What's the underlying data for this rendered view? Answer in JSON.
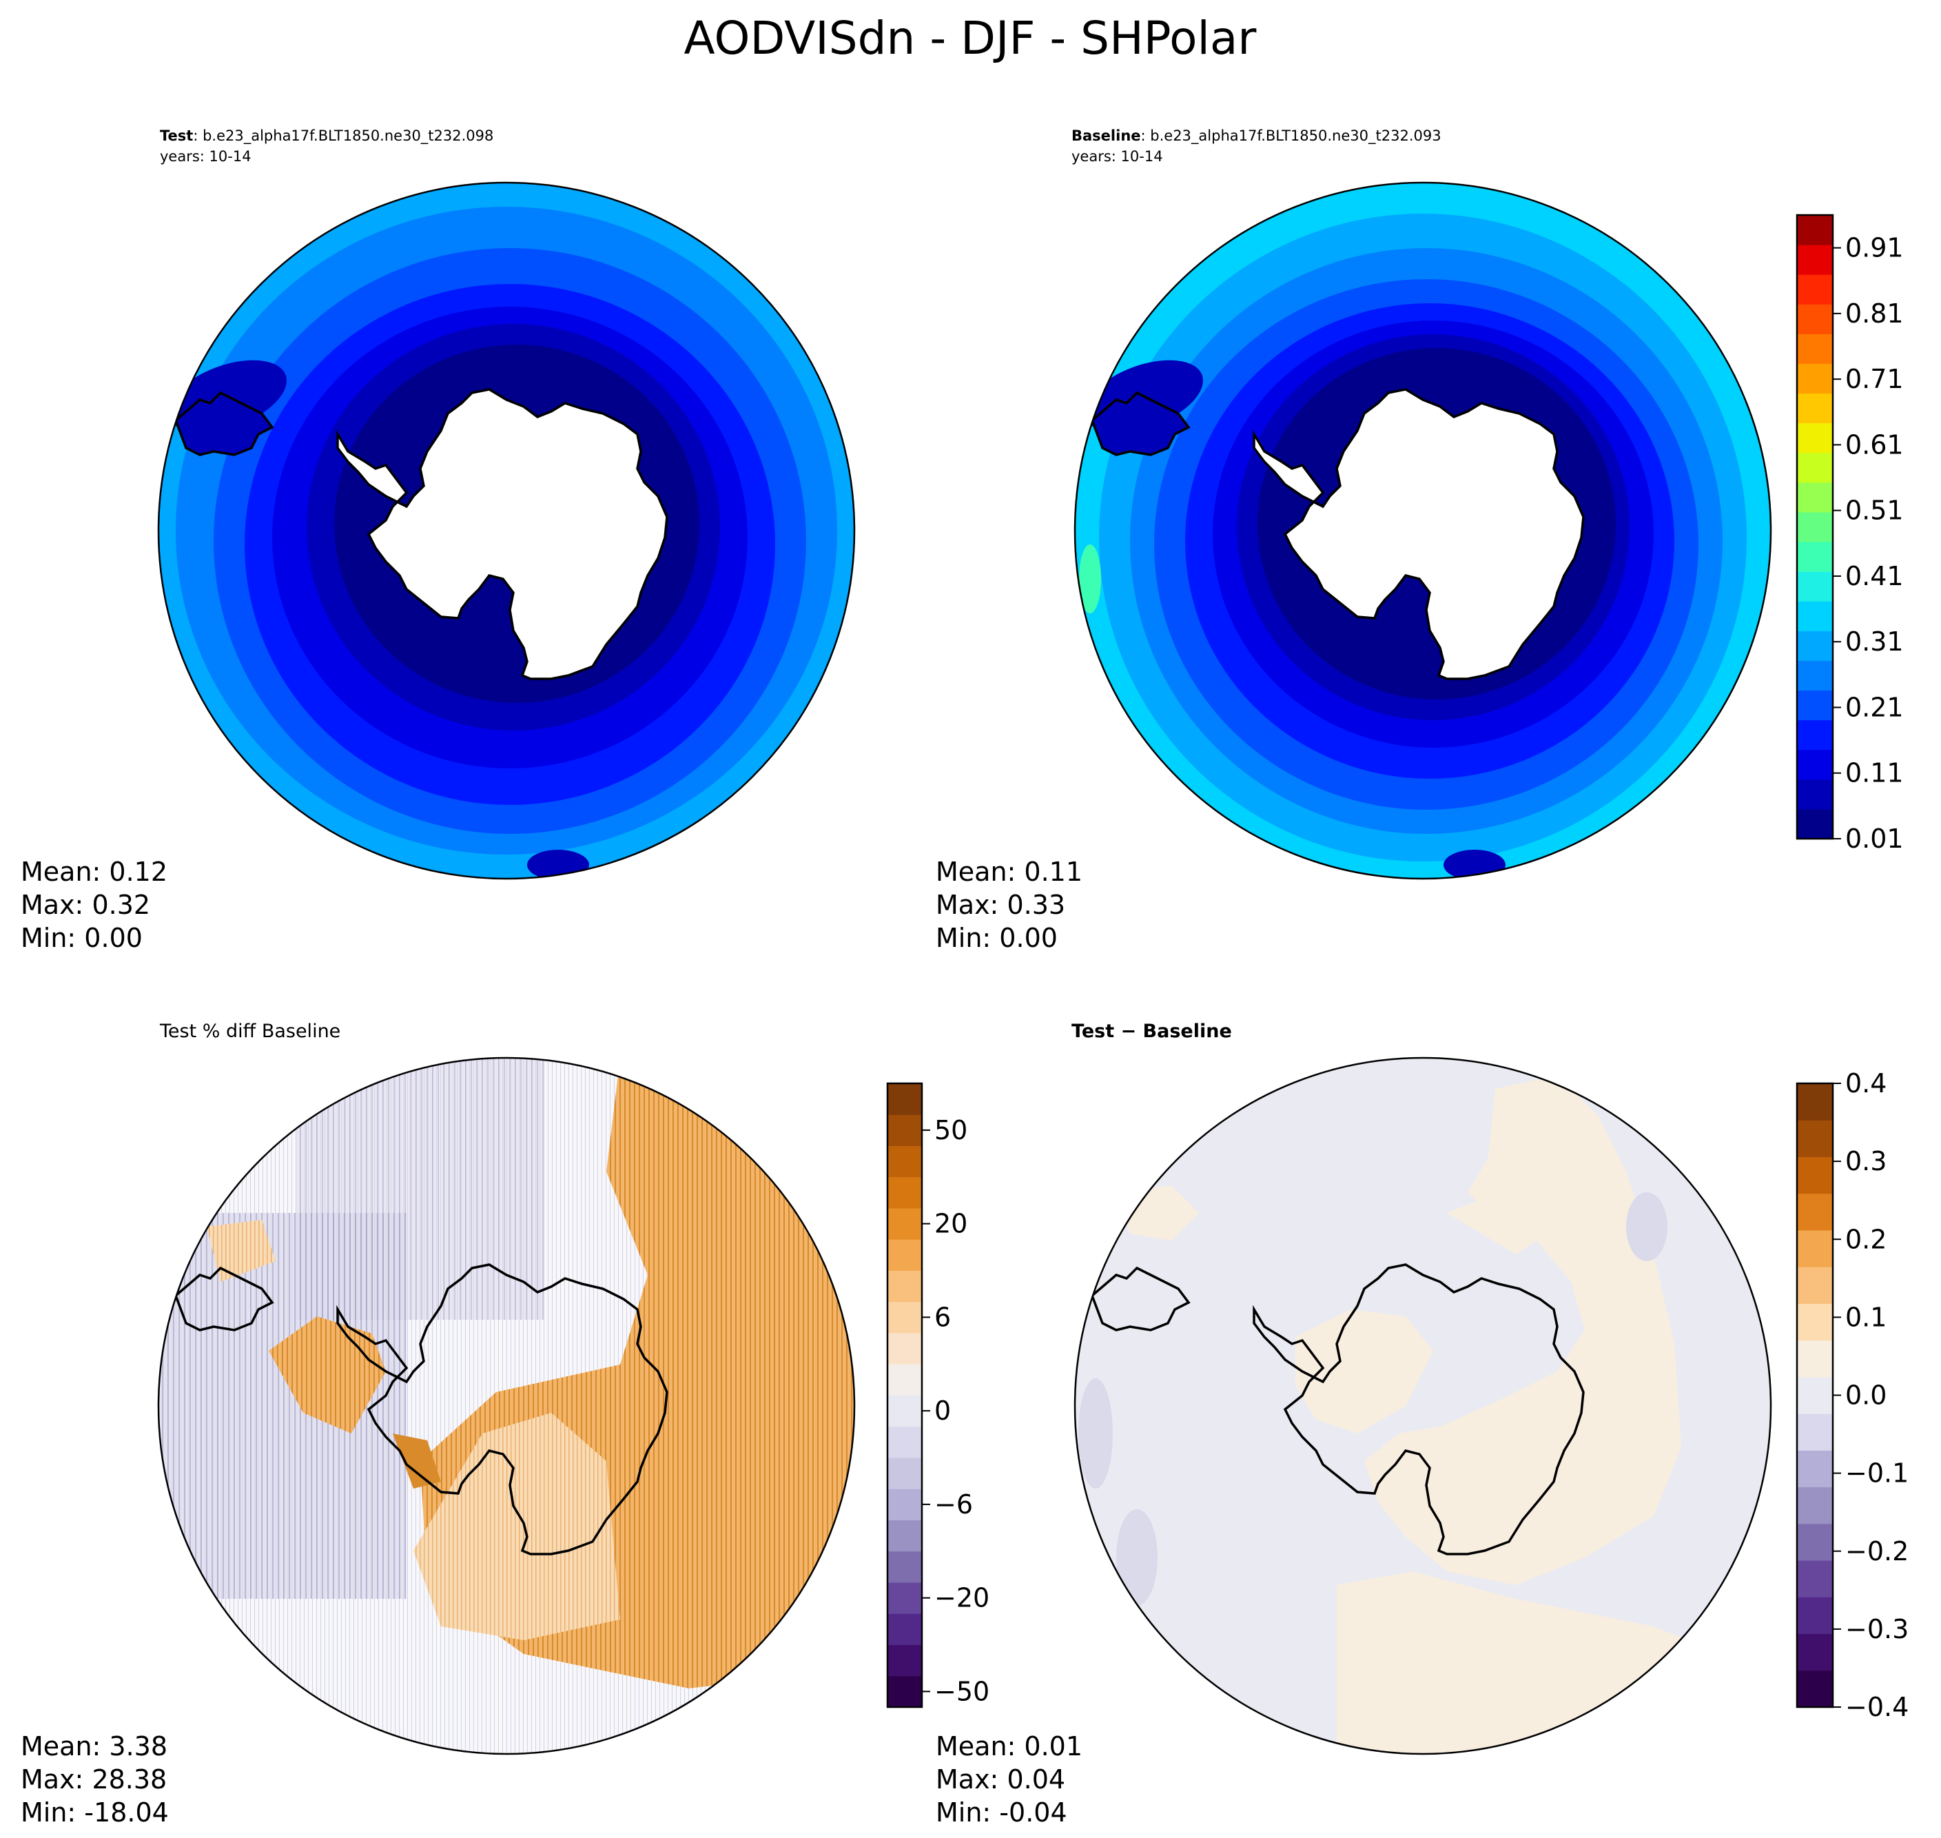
{
  "figure_title": "AODVISdn - DJF - SHPolar",
  "panels": {
    "test": {
      "label_bold": "Test",
      "label_rest": ": b.e23_alpha17f.BLT1850.ne30_t232.098",
      "years": "years: 10-14",
      "stats": {
        "mean": "Mean:  0.12",
        "max": "Max:  0.32",
        "min": "Min:  0.00"
      }
    },
    "baseline": {
      "label_bold": "Baseline",
      "label_rest": ": b.e23_alpha17f.BLT1850.ne30_t232.093",
      "years": "years: 10-14",
      "stats": {
        "mean": "Mean:  0.11",
        "max": "Max:  0.33",
        "min": "Min:  0.00"
      }
    },
    "pctdiff": {
      "title": "Test % diff Baseline",
      "stats": {
        "mean": "Mean:  3.38",
        "max": "Max: 28.38",
        "min": "Min: -18.04"
      }
    },
    "diff": {
      "title_bold": "Test − Baseline",
      "stats": {
        "mean": "Mean:  0.01",
        "max": "Max:  0.04",
        "min": "Min: -0.04"
      }
    }
  },
  "chart_data": [
    {
      "type": "heatmap",
      "name": "Test",
      "projection": "south-polar-stereographic",
      "field_bands_outer_to_inner": [
        0.26,
        0.21,
        0.18,
        0.16,
        0.13,
        0.11,
        0.08,
        0.04
      ],
      "stats": {
        "mean": 0.12,
        "max": 0.32,
        "min": 0.0
      }
    },
    {
      "type": "heatmap",
      "name": "Baseline",
      "projection": "south-polar-stereographic",
      "field_bands_outer_to_inner": [
        0.31,
        0.26,
        0.21,
        0.18,
        0.16,
        0.13,
        0.11,
        0.08,
        0.04
      ],
      "stats": {
        "mean": 0.11,
        "max": 0.33,
        "min": 0.0
      },
      "colorbar": {
        "ticks": [
          "0.01",
          "0.11",
          "0.21",
          "0.31",
          "0.41",
          "0.51",
          "0.61",
          "0.71",
          "0.81",
          "0.91"
        ],
        "range": [
          0.01,
          0.96
        ],
        "colors": [
          "#00008b",
          "#0000b8",
          "#0000e6",
          "#0018ff",
          "#0050ff",
          "#0080ff",
          "#00a8ff",
          "#00d2ff",
          "#1ef0e6",
          "#3cffb4",
          "#64ff82",
          "#96ff50",
          "#c8ff1e",
          "#f0f000",
          "#ffc800",
          "#ffa000",
          "#ff7800",
          "#ff5000",
          "#ff2800",
          "#e60000",
          "#a00000"
        ]
      }
    },
    {
      "type": "heatmap",
      "name": "Test % diff Baseline",
      "projection": "south-polar-stereographic",
      "stats": {
        "mean": 3.38,
        "max": 28.38,
        "min": -18.04
      },
      "colorbar": {
        "ticks": [
          "50",
          "20",
          "6",
          "0",
          "−6",
          "−20",
          "−50"
        ],
        "tick_positions_levels": [
          18.5,
          15.5,
          12.5,
          9.5,
          6.5,
          3.5,
          0.5
        ],
        "num_levels": 20,
        "colors": [
          "#2d004b",
          "#3f0f6b",
          "#522888",
          "#66479c",
          "#7f6eae",
          "#9a92c3",
          "#b4afd6",
          "#c9c6e2",
          "#d9d8ec",
          "#e8e8f2",
          "#f3eeea",
          "#f9e2c9",
          "#fbd3a3",
          "#f8c07c",
          "#f3a84f",
          "#e88e26",
          "#d6780f",
          "#c06208",
          "#a04d08",
          "#7f3b08"
        ]
      }
    },
    {
      "type": "heatmap",
      "name": "Test − Baseline",
      "projection": "south-polar-stereographic",
      "stats": {
        "mean": 0.01,
        "max": 0.04,
        "min": -0.04
      },
      "colorbar": {
        "ticks": [
          "0.4",
          "0.3",
          "0.2",
          "0.1",
          "0.0",
          "−0.1",
          "−0.2",
          "−0.3",
          "−0.4"
        ],
        "range": [
          -0.4,
          0.4
        ],
        "colors": [
          "#2d004b",
          "#3f0f6b",
          "#522888",
          "#66479c",
          "#7f6eae",
          "#9a92c3",
          "#b4afd6",
          "#d9d8ec",
          "#eaeaf2",
          "#f8eee0",
          "#fcdcb0",
          "#f8c07c",
          "#f3a84f",
          "#e0801c",
          "#c46208",
          "#a04d08",
          "#7f3b08"
        ]
      }
    }
  ]
}
